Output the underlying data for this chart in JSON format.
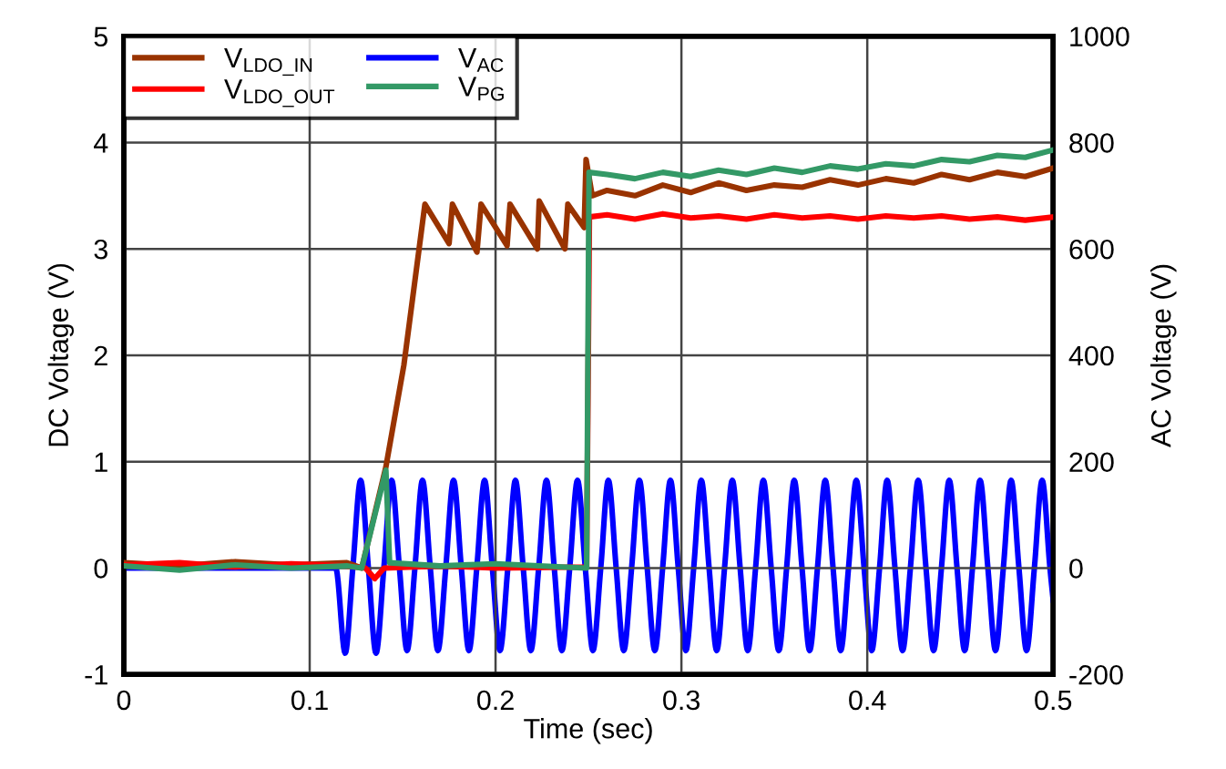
{
  "chart_data": {
    "type": "line",
    "xlabel": "Time (sec)",
    "ylabel": "DC Voltage (V)",
    "y2label": "AC Voltage (V)",
    "xlim": [
      0,
      0.5
    ],
    "xticks": [
      0,
      0.1,
      0.2,
      0.3,
      0.4,
      0.5
    ],
    "ylim": [
      -1,
      5
    ],
    "yticks": [
      -1,
      0,
      1,
      2,
      3,
      4,
      5
    ],
    "y2lim": [
      -200,
      1000
    ],
    "y2ticks": [
      -200,
      0,
      200,
      400,
      600,
      800,
      1000
    ],
    "grid": true,
    "legend": "top left",
    "marker": "none",
    "line_style": "solid",
    "series": [
      {
        "name": "V$_{LDO_IN}$",
        "color": "#993300",
        "x": [
          0,
          0.03,
          0.06,
          0.09,
          0.12,
          0.128,
          0.141,
          0.1507,
          0.162,
          0.175,
          0.1768,
          0.19,
          0.1922,
          0.2062,
          0.2078,
          0.2225,
          0.2235,
          0.2373,
          0.2389,
          0.2477,
          0.2487,
          0.252,
          0.26,
          0.275,
          0.29,
          0.305,
          0.32,
          0.335,
          0.35,
          0.365,
          0.38,
          0.395,
          0.41,
          0.425,
          0.44,
          0.455,
          0.47,
          0.485,
          0.5
        ],
        "values": [
          0.05,
          0.02,
          0.06,
          0.03,
          0.05,
          0,
          0.95,
          1.91,
          3.42,
          3.05,
          3.42,
          2.97,
          3.42,
          3.03,
          3.42,
          3.0,
          3.45,
          3.0,
          3.42,
          3.2,
          3.84,
          3.5,
          3.55,
          3.5,
          3.6,
          3.53,
          3.62,
          3.55,
          3.6,
          3.58,
          3.65,
          3.6,
          3.66,
          3.62,
          3.7,
          3.65,
          3.72,
          3.68,
          3.76
        ]
      },
      {
        "name": "V$_{LDO_OUT}$",
        "color": "#ff0000",
        "x": [
          0,
          0.03,
          0.06,
          0.09,
          0.12,
          0.13,
          0.135,
          0.14,
          0.17,
          0.2,
          0.249,
          0.2505,
          0.26,
          0.275,
          0.29,
          0.305,
          0.32,
          0.335,
          0.35,
          0.365,
          0.38,
          0.395,
          0.41,
          0.425,
          0.44,
          0.455,
          0.47,
          0.485,
          0.5
        ],
        "values": [
          0.03,
          0.05,
          0.01,
          0.04,
          0.02,
          0,
          -0.1,
          0,
          0.02,
          0,
          0.01,
          3.3,
          3.32,
          3.28,
          3.33,
          3.29,
          3.31,
          3.28,
          3.32,
          3.29,
          3.31,
          3.28,
          3.31,
          3.29,
          3.31,
          3.28,
          3.3,
          3.27,
          3.3
        ]
      },
      {
        "name": "V$_{AC}$",
        "color": "#0000ff",
        "axis": "y2",
        "x": [
          0,
          0.114,
          0.1191,
          0.1232,
          0.1274,
          0.1316,
          0.1357,
          0.1399,
          0.1441,
          0.1483,
          0.1524,
          0.1566,
          0.1607,
          0.1649,
          0.169,
          0.1732,
          0.1774,
          0.1816,
          0.1857,
          0.1899,
          0.1941,
          0.1983,
          0.2024,
          0.2066,
          0.2107,
          0.2149,
          0.219,
          0.2232,
          0.2274,
          0.2316,
          0.2357,
          0.2399,
          0.2441,
          0.2483,
          0.2524,
          0.2566,
          0.2607,
          0.2649,
          0.269,
          0.2732,
          0.2774,
          0.2816,
          0.2857,
          0.2899,
          0.2941,
          0.2983,
          0.3024,
          0.3066,
          0.3107,
          0.3149,
          0.319,
          0.3232,
          0.3274,
          0.3316,
          0.3357,
          0.3399,
          0.3441,
          0.3483,
          0.3524,
          0.3566,
          0.3607,
          0.3649,
          0.369,
          0.3732,
          0.3774,
          0.3816,
          0.3857,
          0.3899,
          0.3941,
          0.3983,
          0.4024,
          0.4066,
          0.4107,
          0.4149,
          0.419,
          0.4232,
          0.4274,
          0.4316,
          0.4357,
          0.4399,
          0.4441,
          0.4483,
          0.4524,
          0.4566,
          0.4607,
          0.4649,
          0.469,
          0.4732,
          0.4774,
          0.4816,
          0.4857,
          0.4899,
          0.4941,
          0.4983,
          0.5
        ],
        "values": [
          0,
          0,
          -160,
          0,
          165,
          0,
          -160,
          0,
          165,
          0,
          -155,
          0,
          165,
          0,
          -155,
          0,
          165,
          0,
          -155,
          0,
          165,
          0,
          -155,
          0,
          165,
          0,
          -155,
          0,
          165,
          0,
          -155,
          0,
          165,
          0,
          -155,
          0,
          165,
          0,
          -155,
          0,
          165,
          0,
          -155,
          0,
          165,
          0,
          -155,
          0,
          165,
          0,
          -155,
          0,
          165,
          0,
          -155,
          0,
          165,
          0,
          -155,
          0,
          165,
          0,
          -155,
          0,
          165,
          0,
          -155,
          0,
          165,
          0,
          -155,
          0,
          165,
          0,
          -155,
          0,
          165,
          0,
          -155,
          0,
          165,
          0,
          -155,
          0,
          165,
          0,
          -155,
          0,
          165,
          0,
          -155,
          0,
          165,
          0,
          -60
        ]
      },
      {
        "name": "V$_{PG}$",
        "color": "#339966",
        "x": [
          0,
          0.03,
          0.06,
          0.09,
          0.12,
          0.128,
          0.141,
          0.143,
          0.17,
          0.2,
          0.249,
          0.2503,
          0.26,
          0.275,
          0.29,
          0.305,
          0.32,
          0.335,
          0.35,
          0.365,
          0.38,
          0.395,
          0.41,
          0.425,
          0.44,
          0.455,
          0.47,
          0.485,
          0.5
        ],
        "values": [
          0.02,
          -0.02,
          0.03,
          0,
          0.02,
          0,
          0.92,
          0.05,
          0.02,
          0.04,
          0,
          3.72,
          3.7,
          3.66,
          3.72,
          3.68,
          3.74,
          3.7,
          3.76,
          3.72,
          3.78,
          3.75,
          3.8,
          3.78,
          3.84,
          3.82,
          3.88,
          3.86,
          3.93
        ]
      }
    ]
  }
}
